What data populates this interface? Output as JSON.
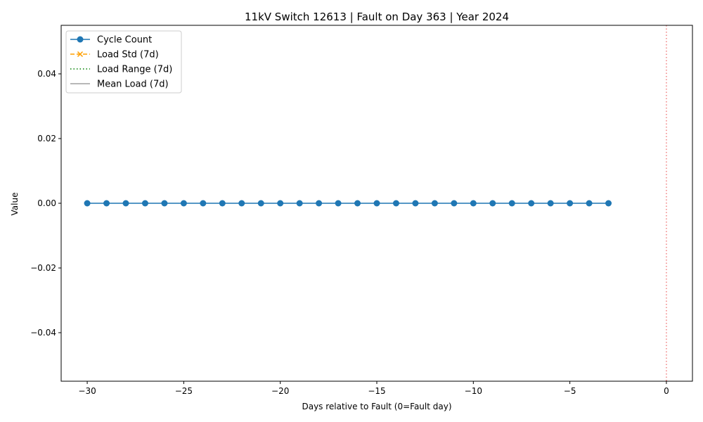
{
  "chart_data": {
    "type": "line",
    "title": "11kV Switch 12613 | Fault on Day 363 | Year 2024",
    "xlabel": "Days relative to Fault (0=Fault day)",
    "ylabel": "Value",
    "xlim": [
      -31.35,
      1.35
    ],
    "ylim": [
      -0.055,
      0.055
    ],
    "x_ticks": [
      -30,
      -25,
      -20,
      -15,
      -10,
      -5,
      0
    ],
    "x_tick_labels": [
      "−30",
      "−25",
      "−20",
      "−15",
      "−10",
      "−5",
      "0"
    ],
    "y_ticks": [
      0.04,
      0.02,
      0.0,
      -0.02,
      -0.04
    ],
    "y_tick_labels": [
      "0.04",
      "0.02",
      "0.00",
      "−0.02",
      "−0.04"
    ],
    "grid": false,
    "legend_position": "upper-left",
    "series": [
      {
        "name": "Cycle Count",
        "color": "#1f77b4",
        "style": "solid",
        "marker": "circle",
        "x": [
          -30,
          -29,
          -28,
          -27,
          -26,
          -25,
          -24,
          -23,
          -22,
          -21,
          -20,
          -19,
          -18,
          -17,
          -16,
          -15,
          -14,
          -13,
          -12,
          -11,
          -10,
          -9,
          -8,
          -7,
          -6,
          -5,
          -4,
          -3
        ],
        "y": [
          0,
          0,
          0,
          0,
          0,
          0,
          0,
          0,
          0,
          0,
          0,
          0,
          0,
          0,
          0,
          0,
          0,
          0,
          0,
          0,
          0,
          0,
          0,
          0,
          0,
          0,
          0,
          0
        ]
      },
      {
        "name": "Load Std (7d)",
        "color": "#ff9f00",
        "style": "dashed",
        "marker": "x",
        "x": [],
        "y": []
      },
      {
        "name": "Load Range (7d)",
        "color": "#008000",
        "style": "dotted",
        "marker": "none",
        "x": [],
        "y": []
      },
      {
        "name": "Mean Load (7d)",
        "color": "#a0a0a0",
        "style": "solid",
        "marker": "none",
        "x": [],
        "y": []
      }
    ],
    "annotations": [
      {
        "type": "vertical-line",
        "x": 0,
        "color": "#f08080",
        "style": "dotted"
      }
    ]
  }
}
